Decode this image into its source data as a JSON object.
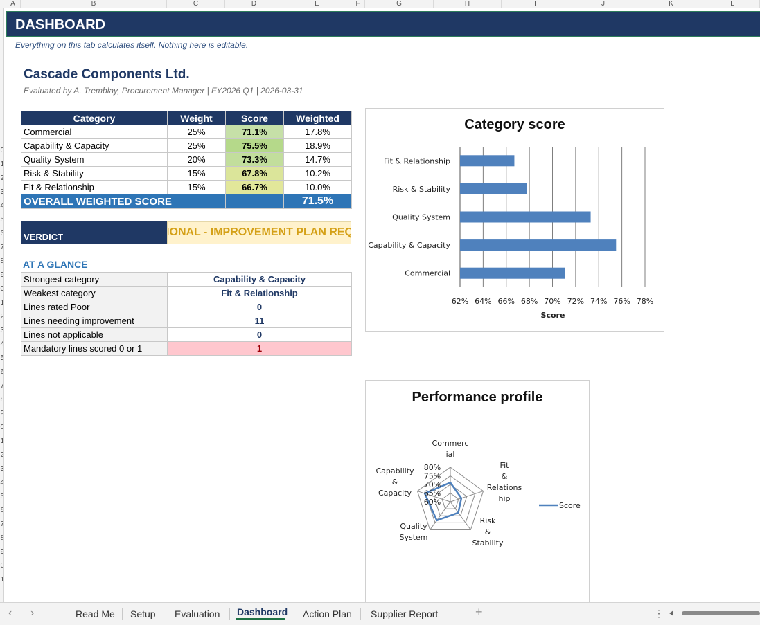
{
  "columns": [
    "A",
    "B",
    "C",
    "D",
    "E",
    "F",
    "G",
    "H",
    "I",
    "J",
    "K",
    "L"
  ],
  "row_numbers": [
    "0",
    "1",
    "2",
    "3",
    "4",
    "5",
    "6",
    "7",
    "8",
    "9",
    "0",
    "1",
    "2",
    "3",
    "4",
    "5",
    "6",
    "7",
    "8",
    "9",
    "0",
    "1",
    "2",
    "3",
    "4",
    "5",
    "6",
    "7",
    "8",
    "9",
    "0",
    "1"
  ],
  "banner": {
    "title": "DASHBOARD"
  },
  "subnote": "Everything on this tab calculates itself. Nothing here is editable.",
  "company": "Cascade Components Ltd.",
  "eval_line": "Evaluated by A. Tremblay, Procurement Manager  |  FY2026 Q1  |  2026-03-31",
  "table": {
    "headers": [
      "Category",
      "Weight",
      "Score",
      "Weighted"
    ],
    "rows": [
      {
        "category": "Commercial",
        "weight": "25%",
        "score": "71.1%",
        "weighted": "17.8%",
        "color": "#c6e0a8"
      },
      {
        "category": "Capability & Capacity",
        "weight": "25%",
        "score": "75.5%",
        "weighted": "18.9%",
        "color": "#b5d98a"
      },
      {
        "category": "Quality System",
        "weight": "20%",
        "score": "73.3%",
        "weighted": "14.7%",
        "color": "#c2de9c"
      },
      {
        "category": "Risk & Stability",
        "weight": "15%",
        "score": "67.8%",
        "weighted": "10.2%",
        "color": "#dbe59a"
      },
      {
        "category": "Fit & Relationship",
        "weight": "15%",
        "score": "66.7%",
        "weighted": "10.0%",
        "color": "#e2e79a"
      }
    ],
    "overall_label": "OVERALL WEIGHTED SCORE",
    "overall_value": "71.5%"
  },
  "verdict": {
    "label": "VERDICT",
    "value": "ONDITIONAL - IMPROVEMENT PLAN REQ"
  },
  "glance": {
    "title": "AT A GLANCE",
    "rows": [
      {
        "label": "Strongest category",
        "value": "Capability & Capacity"
      },
      {
        "label": "Weakest category",
        "value": "Fit & Relationship"
      },
      {
        "label": "Lines rated Poor",
        "value": "0"
      },
      {
        "label": "Lines needing improvement",
        "value": "11"
      },
      {
        "label": "Lines not applicable",
        "value": "0"
      },
      {
        "label": "Mandatory lines scored 0 or 1",
        "value": "1"
      }
    ]
  },
  "chart_data": [
    {
      "type": "bar",
      "orientation": "horizontal",
      "title": "Category score",
      "xlabel": "Score",
      "categories": [
        "Commercial",
        "Capability & Capacity",
        "Quality System",
        "Risk & Stability",
        "Fit & Relationship"
      ],
      "values": [
        71.1,
        75.5,
        73.3,
        67.8,
        66.7
      ],
      "xlim": [
        62,
        78
      ],
      "ticks": [
        "62%",
        "64%",
        "66%",
        "68%",
        "70%",
        "72%",
        "74%",
        "76%",
        "78%"
      ],
      "tick_values": [
        62,
        64,
        66,
        68,
        70,
        72,
        74,
        76,
        78
      ],
      "grid": true,
      "bar_color": "#4f81bd"
    },
    {
      "type": "radar",
      "title": "Performance profile",
      "axes": [
        "Commerc ial",
        "Fit & Relations hip",
        "Risk & Stability",
        "Quality System",
        "Capability & Capacity"
      ],
      "series": [
        {
          "name": "Score",
          "values": [
            71.1,
            66.7,
            67.8,
            73.3,
            75.5
          ]
        }
      ],
      "rlim": [
        60,
        80
      ],
      "ring_labels": [
        "80%",
        "75%",
        "70%",
        "65%",
        "60%"
      ],
      "ring_values": [
        80,
        75,
        70,
        65,
        60
      ],
      "legend": "right",
      "line_color": "#4f81bd"
    }
  ],
  "tabs": {
    "items": [
      "Read Me",
      "Setup",
      "Evaluation",
      "Dashboard",
      "Action Plan",
      "Supplier Report"
    ],
    "active": "Dashboard",
    "prev_icon": "chevron-left-icon",
    "next_icon": "chevron-right-icon",
    "add_icon": "plus-icon",
    "more_icon": "vertical-dots-icon"
  }
}
